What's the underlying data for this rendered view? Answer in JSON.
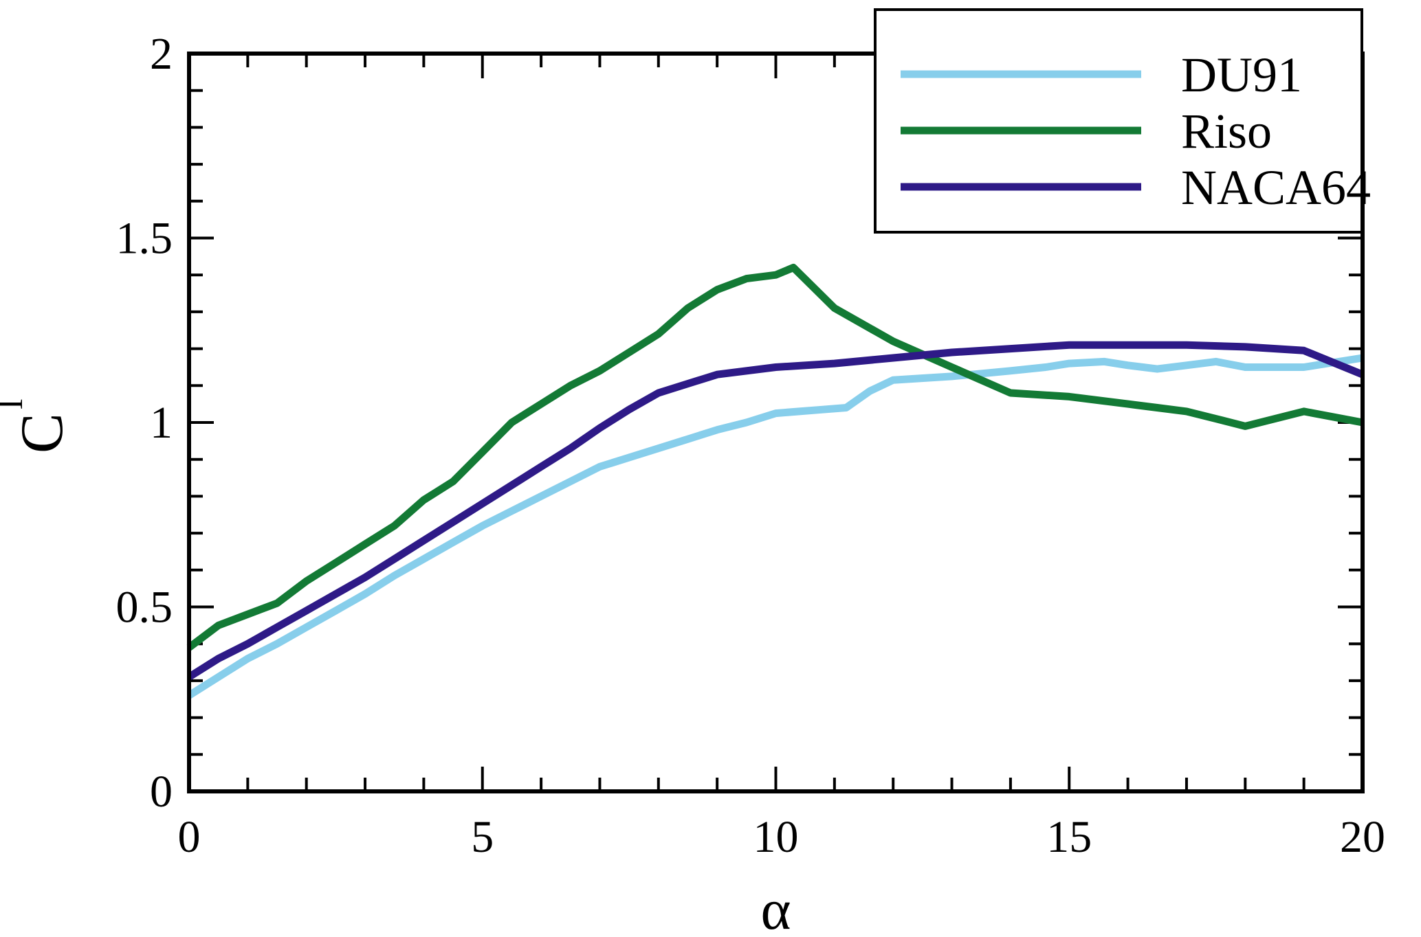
{
  "chart_data": {
    "type": "line",
    "title": "",
    "xlabel": "α",
    "ylabel": "C",
    "ylabel_subscript": "l",
    "xlim": [
      0,
      20
    ],
    "ylim": [
      0,
      2
    ],
    "xticks": [
      0,
      5,
      10,
      15,
      20
    ],
    "xtick_labels": [
      "0",
      "5",
      "10",
      "15",
      "20"
    ],
    "yticks": [
      0,
      0.5,
      1,
      1.5,
      2
    ],
    "ytick_labels": [
      "0",
      "0.5",
      "1",
      "1.5",
      "2"
    ],
    "x_minor_step": 1,
    "y_minor_step": 0.1,
    "grid": false,
    "legend_position": "top-right",
    "series": [
      {
        "name": "DU91",
        "color": "#87ceeb",
        "x": [
          0,
          0.5,
          1,
          1.5,
          2,
          2.5,
          3,
          3.5,
          4,
          4.5,
          5,
          5.5,
          6,
          6.5,
          7,
          7.5,
          8,
          8.5,
          9,
          9.5,
          10,
          10.4,
          10.8,
          11.2,
          11.6,
          12,
          13,
          14,
          14.6,
          15,
          15.6,
          16,
          16.5,
          17,
          17.5,
          18,
          19,
          20
        ],
        "y": [
          0.26,
          0.31,
          0.36,
          0.4,
          0.445,
          0.49,
          0.535,
          0.585,
          0.63,
          0.675,
          0.72,
          0.76,
          0.8,
          0.84,
          0.88,
          0.905,
          0.93,
          0.955,
          0.98,
          1.0,
          1.025,
          1.03,
          1.035,
          1.04,
          1.085,
          1.115,
          1.125,
          1.14,
          1.15,
          1.16,
          1.165,
          1.155,
          1.145,
          1.155,
          1.165,
          1.15,
          1.15,
          1.175
        ]
      },
      {
        "name": "Riso",
        "color": "#137a35",
        "x": [
          0,
          0.5,
          1,
          1.5,
          2,
          2.5,
          3,
          3.5,
          4,
          4.5,
          5,
          5.5,
          6,
          6.5,
          7,
          7.5,
          8,
          8.5,
          9,
          9.5,
          10,
          10.3,
          11,
          12,
          13,
          14,
          15,
          16,
          16.5,
          17,
          17.5,
          18,
          19,
          20
        ],
        "y": [
          0.39,
          0.45,
          0.48,
          0.51,
          0.57,
          0.62,
          0.67,
          0.72,
          0.79,
          0.84,
          0.92,
          1.0,
          1.05,
          1.1,
          1.14,
          1.19,
          1.24,
          1.31,
          1.36,
          1.39,
          1.4,
          1.42,
          1.31,
          1.22,
          1.15,
          1.08,
          1.07,
          1.05,
          1.04,
          1.03,
          1.01,
          0.99,
          1.03,
          1.0
        ]
      },
      {
        "name": "NACA64",
        "color": "#2e1a87",
        "x": [
          0,
          0.5,
          1,
          1.5,
          2,
          2.5,
          3,
          3.5,
          4,
          4.5,
          5,
          5.5,
          6,
          6.5,
          7,
          7.5,
          8,
          9,
          10,
          11,
          12,
          13,
          14,
          15,
          16,
          17,
          18,
          19,
          20
        ],
        "y": [
          0.31,
          0.36,
          0.4,
          0.445,
          0.49,
          0.535,
          0.58,
          0.63,
          0.68,
          0.73,
          0.78,
          0.83,
          0.88,
          0.93,
          0.985,
          1.035,
          1.08,
          1.13,
          1.15,
          1.16,
          1.175,
          1.19,
          1.2,
          1.21,
          1.21,
          1.21,
          1.205,
          1.195,
          1.13
        ]
      }
    ]
  }
}
